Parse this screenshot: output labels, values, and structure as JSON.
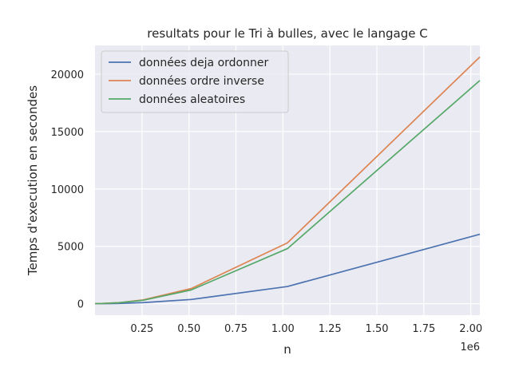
{
  "chart_data": {
    "type": "line",
    "title": "resultats pour le Tri à bulles, avec le langage C",
    "xlabel": "n",
    "ylabel": "Temps d'execution en secondes",
    "x_offset_label": "1e6",
    "xlim": [
      0,
      2048000
    ],
    "ylim": [
      -1000,
      22500
    ],
    "x_ticks": [
      250000,
      500000,
      750000,
      1000000,
      1250000,
      1500000,
      1750000,
      2000000
    ],
    "x_tick_labels": [
      "0.25",
      "0.50",
      "0.75",
      "1.00",
      "1.25",
      "1.50",
      "1.75",
      "2.00"
    ],
    "y_ticks": [
      0,
      5000,
      10000,
      15000,
      20000
    ],
    "y_tick_labels": [
      "0",
      "5000",
      "10000",
      "15000",
      "20000"
    ],
    "grid": true,
    "legend_position": "top-left",
    "x": [
      1000,
      2000,
      4000,
      8000,
      16000,
      32000,
      64000,
      128000,
      256000,
      512000,
      1024000,
      2048000
    ],
    "series": [
      {
        "name": "données deja ordonner",
        "color": "#4c72b0",
        "values": [
          0,
          0,
          0,
          0,
          1,
          3,
          8,
          25,
          95,
          370,
          1500,
          6050
        ]
      },
      {
        "name": "données ordre inverse",
        "color": "#dd8452",
        "values": [
          0,
          0,
          0,
          1,
          3,
          12,
          45,
          90,
          330,
          1320,
          5300,
          21500
        ]
      },
      {
        "name": "données aleatoires",
        "color": "#55a868",
        "values": [
          0,
          0,
          0,
          1,
          3,
          11,
          40,
          85,
          300,
          1200,
          4800,
          19450
        ]
      }
    ]
  }
}
